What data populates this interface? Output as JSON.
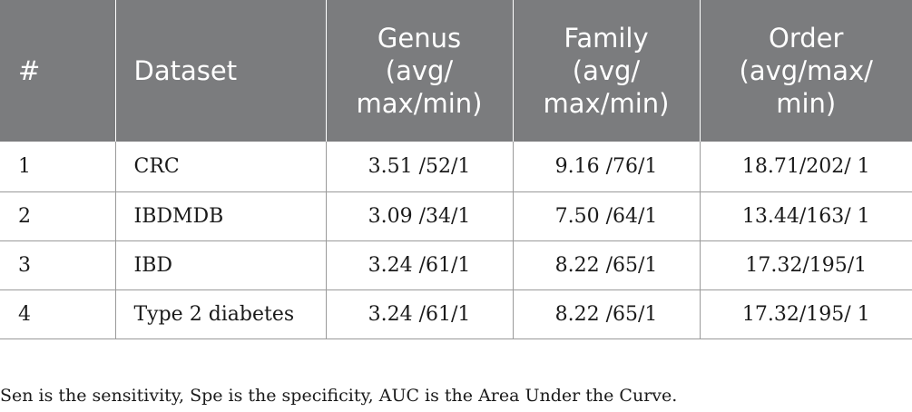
{
  "table": {
    "headers": [
      {
        "lines": [
          "#"
        ]
      },
      {
        "lines": [
          "Dataset"
        ]
      },
      {
        "lines": [
          "Genus",
          "(avg/",
          "max/min)"
        ]
      },
      {
        "lines": [
          "Family",
          "(avg/",
          "max/min)"
        ]
      },
      {
        "lines": [
          "Order",
          "(avg/max/",
          "min)"
        ]
      }
    ],
    "rows": [
      {
        "num": "1",
        "dataset": "CRC",
        "genus": "3.51 /52/1",
        "family": "9.16 /76/1",
        "order": "18.71/202/ 1"
      },
      {
        "num": "2",
        "dataset": "IBDMDB",
        "genus": "3.09 /34/1",
        "family": "7.50 /64/1",
        "order": "13.44/163/ 1"
      },
      {
        "num": "3",
        "dataset": "IBD",
        "genus": "3.24 /61/1",
        "family": "8.22 /65/1",
        "order": "17.32/195/1"
      },
      {
        "num": "4",
        "dataset": "Type 2 diabetes",
        "genus": "3.24 /61/1",
        "family": "8.22 /65/1",
        "order": "17.32/195/ 1"
      }
    ]
  },
  "footnote": "Sen is the sensitivity, Spe is the specificity, AUC is the Area Under the Curve."
}
